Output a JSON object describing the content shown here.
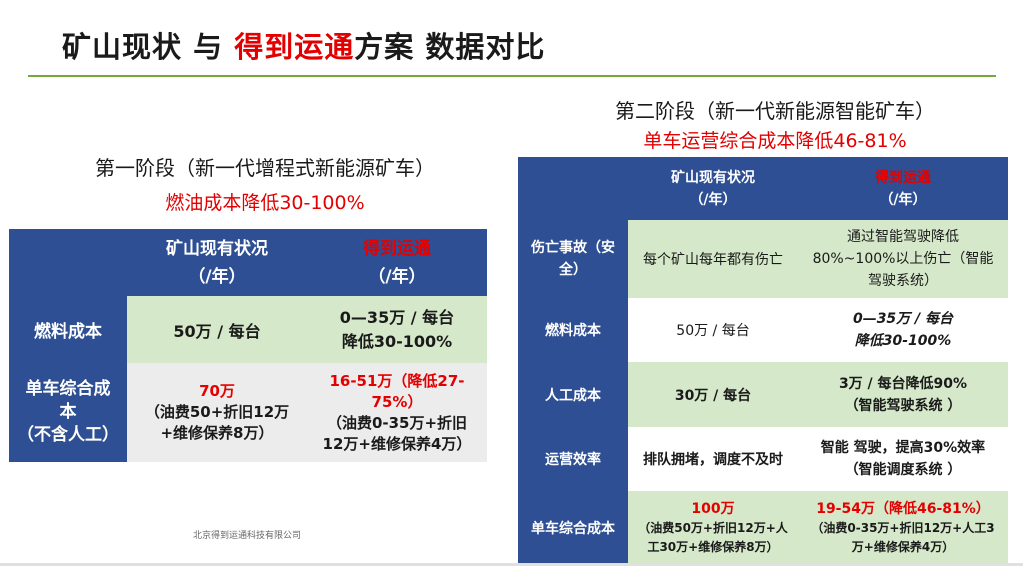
{
  "title": {
    "part1": "矿山现状 与 ",
    "brand": "得到运通",
    "part2": "方案 数据对比"
  },
  "stage1": {
    "heading": "第一阶段（新一代增程式新能源矿车）",
    "subtitle": "燃油成本降低30-100%",
    "header": {
      "col1_line1": "矿山现有状况",
      "col1_line2": "（/年）",
      "col2_line1": "得到运通",
      "col2_line2": "（/年）"
    },
    "rows": [
      {
        "label": "燃料成本",
        "current": "50万 / 每台",
        "proposed_line1": "0—35万 / 每台",
        "proposed_line2": "降低30-100%"
      },
      {
        "label_line1": "单车综合成",
        "label_line2": "本",
        "label_line3": "（不含人工）",
        "current_highlight": "70万",
        "current_detail": "（油费50+折旧12万+维修保养8万）",
        "proposed_highlight": "16-51万（降低27-75%）",
        "proposed_detail": "（油费0-35万+折旧12万+维修保养4万）"
      }
    ]
  },
  "stage2": {
    "heading": "第二阶段（新一代新能源智能矿车）",
    "subtitle": "单车运营综合成本降低46-81%",
    "header": {
      "col1_line1": "矿山现有状况",
      "col1_line2": "（/年）",
      "col2_line1": "得到运通",
      "col2_line2": "（/年）"
    },
    "rows": [
      {
        "label": "伤亡事故（安全）",
        "current": "每个矿山每年都有伤亡",
        "proposed": "通过智能驾驶降低80%~100%以上伤亡（智能驾驶系统）"
      },
      {
        "label": "燃料成本",
        "current": "50万 / 每台",
        "proposed_line1": "0—35万 / 每台",
        "proposed_line2": "降低30-100%"
      },
      {
        "label": "人工成本",
        "current": "30万 / 每台",
        "proposed_line1": "3万 / 每台降低90%",
        "proposed_line2": "（智能驾驶系统 ）"
      },
      {
        "label": "运营效率",
        "current": "排队拥堵，调度不及时",
        "proposed_line1": "智能 驾驶，提高30%效率",
        "proposed_line2": "（智能调度系统 ）"
      },
      {
        "label": "单车综合成本",
        "current_highlight": "100万",
        "current_detail": "（油费50万+折旧12万+人工30万+维修保养8万）",
        "proposed_highlight": "19-54万（降低46-81%）",
        "proposed_detail": "（油费0-35万+折旧12万+人工3万+维修保养4万）"
      }
    ]
  },
  "footer": "北京得到运通科技有限公司"
}
